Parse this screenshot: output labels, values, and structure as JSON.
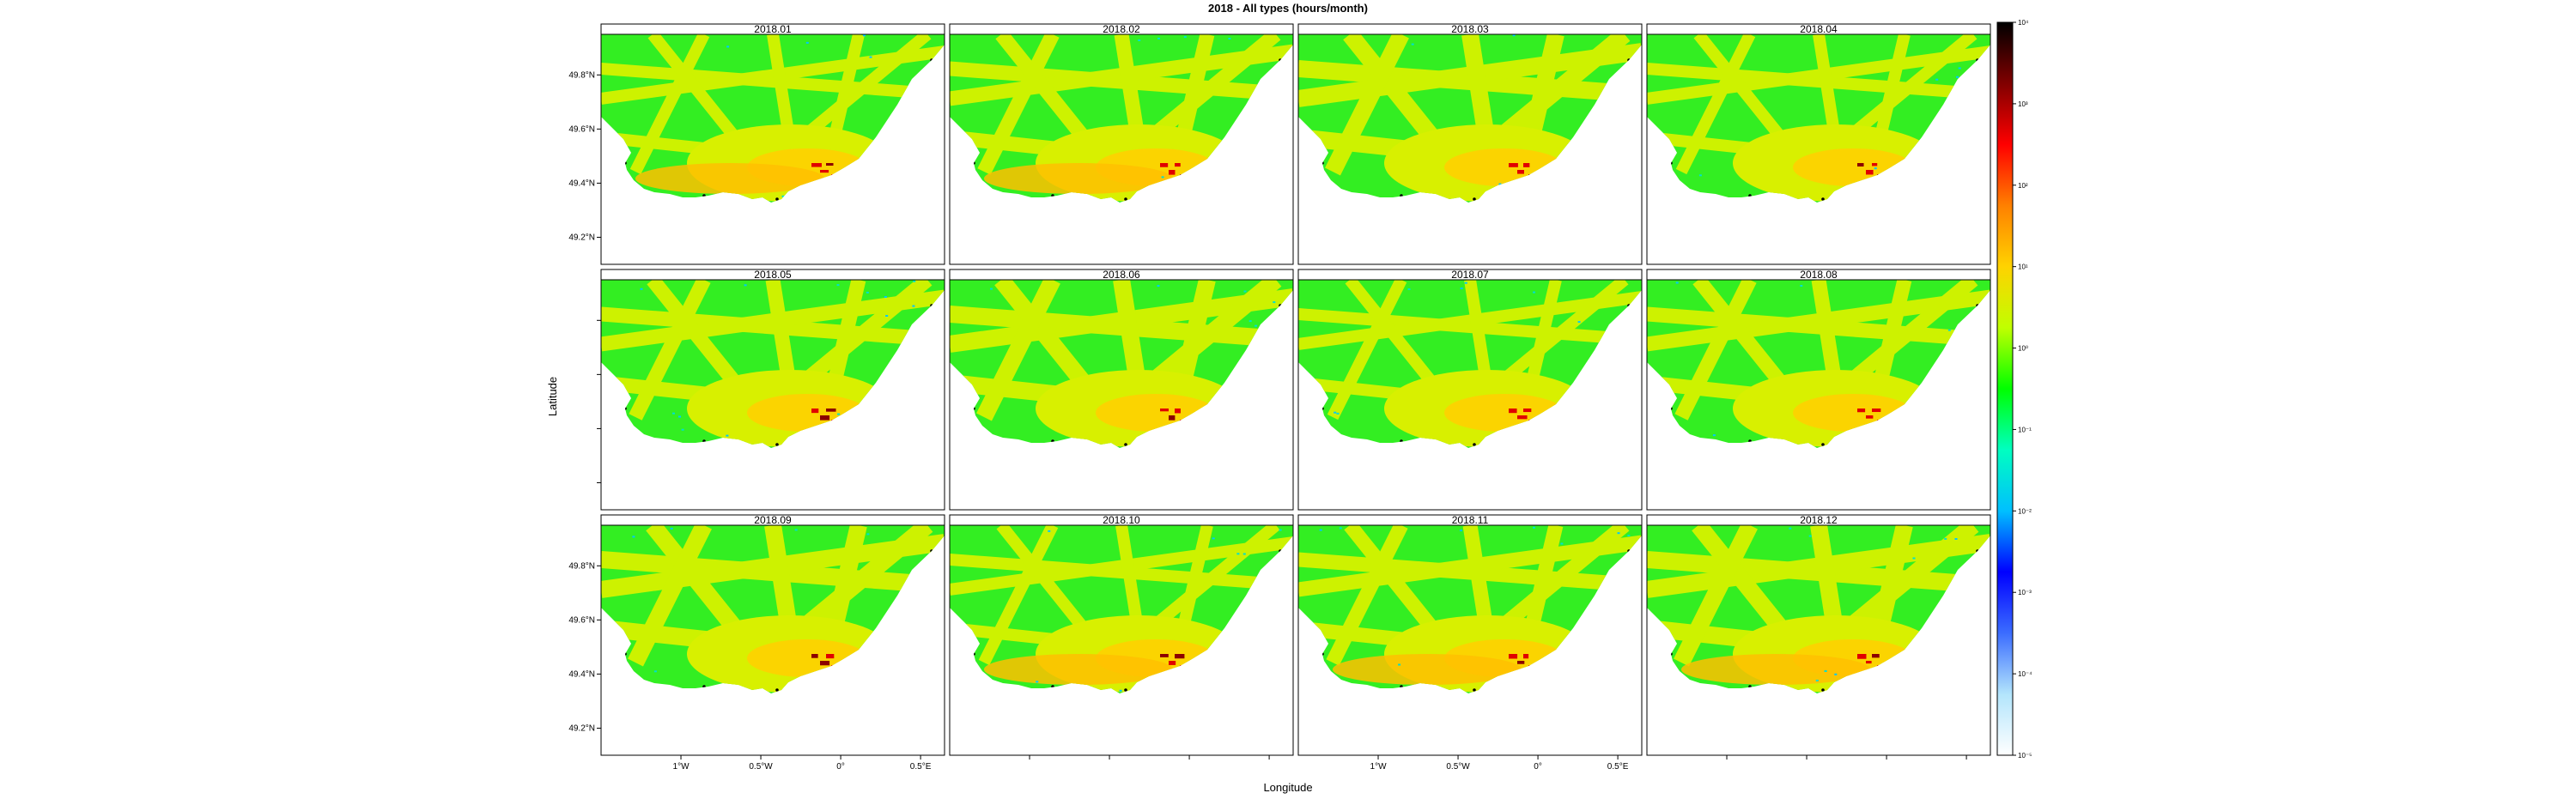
{
  "chart_data": {
    "type": "heatmap",
    "title": "2018 - All types (hours/month)",
    "xlabel": "Longitude",
    "ylabel": "Latitude",
    "panels": [
      "2018.01",
      "2018.02",
      "2018.03",
      "2018.04",
      "2018.05",
      "2018.06",
      "2018.07",
      "2018.08",
      "2018.09",
      "2018.10",
      "2018.11",
      "2018.12"
    ],
    "x_range": [
      -1.5,
      0.65
    ],
    "y_range": [
      49.1,
      49.95
    ],
    "x_ticks": [
      {
        "value": -1,
        "label": "1°W"
      },
      {
        "value": -0.5,
        "label": "0.5°W"
      },
      {
        "value": 0,
        "label": "0°"
      },
      {
        "value": 0.5,
        "label": "0.5°E"
      }
    ],
    "y_ticks": [
      {
        "value": 49.8,
        "label": "49.8°N"
      },
      {
        "value": 49.6,
        "label": "49.6°N"
      },
      {
        "value": 49.4,
        "label": "49.4°N"
      },
      {
        "value": 49.2,
        "label": "49.2°N"
      }
    ],
    "colorbar": {
      "scale": "log10",
      "range": [
        1e-05,
        10000.0
      ],
      "ticks": [
        {
          "value": 4,
          "label": "10⁴"
        },
        {
          "value": 3,
          "label": "10³"
        },
        {
          "value": 2,
          "label": "10²"
        },
        {
          "value": 1,
          "label": "10¹"
        },
        {
          "value": 0,
          "label": "10⁰"
        },
        {
          "value": -1,
          "label": "10⁻¹"
        },
        {
          "value": -2,
          "label": "10⁻²"
        },
        {
          "value": -3,
          "label": "10⁻³"
        },
        {
          "value": -4,
          "label": "10⁻⁴"
        },
        {
          "value": -5,
          "label": "10⁻⁵"
        }
      ],
      "colors": [
        "#ffffff",
        "#b3e5fc",
        "#3b6cff",
        "#0000ff",
        "#00bfff",
        "#00ffc0",
        "#00ff00",
        "#c0ff00",
        "#ffd200",
        "#ff8000",
        "#ff0000",
        "#800000",
        "#000000"
      ]
    },
    "grid": false,
    "legend": "right"
  }
}
